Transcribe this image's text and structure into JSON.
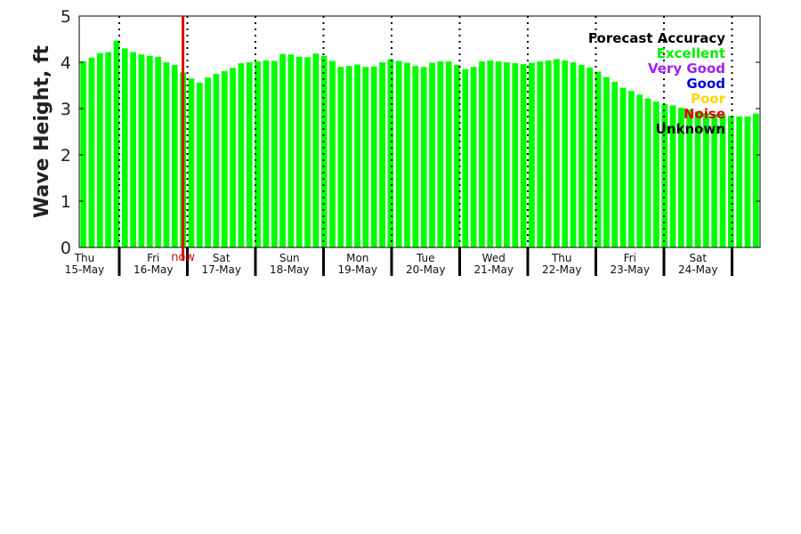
{
  "chart_data": {
    "type": "bar",
    "title": "",
    "xlabel": "",
    "ylabel": "Wave Height, ft",
    "ylim": [
      0,
      5
    ],
    "yticks": [
      0,
      1,
      2,
      3,
      4,
      5
    ],
    "grid": false,
    "legend_position": "top-right",
    "bar_color": "#00ff00",
    "now_marker": {
      "label": "now",
      "bar_index": 12,
      "color": "#e00000"
    },
    "days": [
      {
        "weekday": "Thu",
        "date": "15-May"
      },
      {
        "weekday": "Fri",
        "date": "16-May"
      },
      {
        "weekday": "Sat",
        "date": "17-May"
      },
      {
        "weekday": "Sun",
        "date": "18-May"
      },
      {
        "weekday": "Mon",
        "date": "19-May"
      },
      {
        "weekday": "Tue",
        "date": "20-May"
      },
      {
        "weekday": "Wed",
        "date": "21-May"
      },
      {
        "weekday": "Thu",
        "date": "22-May"
      },
      {
        "weekday": "Fri",
        "date": "23-May"
      },
      {
        "weekday": "Sat",
        "date": "24-May"
      }
    ],
    "values": [
      4.02,
      4.1,
      4.2,
      4.22,
      4.47,
      4.3,
      4.22,
      4.17,
      4.14,
      4.12,
      4.0,
      3.94,
      3.78,
      3.65,
      3.56,
      3.67,
      3.75,
      3.81,
      3.88,
      3.98,
      4.0,
      4.02,
      4.04,
      4.03,
      4.18,
      4.17,
      4.12,
      4.11,
      4.19,
      4.14,
      4.03,
      3.9,
      3.92,
      3.95,
      3.9,
      3.91,
      4.0,
      4.07,
      4.03,
      3.99,
      3.92,
      3.9,
      3.99,
      4.02,
      4.02,
      3.94,
      3.85,
      3.9,
      4.02,
      4.04,
      4.02,
      4.0,
      3.98,
      3.96,
      3.99,
      4.02,
      4.04,
      4.07,
      4.04,
      4.0,
      3.94,
      3.89,
      3.8,
      3.68,
      3.58,
      3.45,
      3.38,
      3.3,
      3.22,
      3.15,
      3.1,
      3.07,
      3.02,
      2.98,
      2.93,
      2.9,
      2.88,
      2.86,
      2.84,
      2.83,
      2.83,
      2.89
    ]
  },
  "legend": {
    "title": {
      "text": "Forecast Accuracy",
      "color": "#000000"
    },
    "items": [
      {
        "text": "Excellent",
        "color": "#00ee00"
      },
      {
        "text": "Very Good",
        "color": "#a020f0"
      },
      {
        "text": "Good",
        "color": "#0000dd"
      },
      {
        "text": "Poor",
        "color": "#ffd700"
      },
      {
        "text": "Noise",
        "color": "#e00000"
      },
      {
        "text": "Unknown",
        "color": "#000000"
      }
    ]
  }
}
